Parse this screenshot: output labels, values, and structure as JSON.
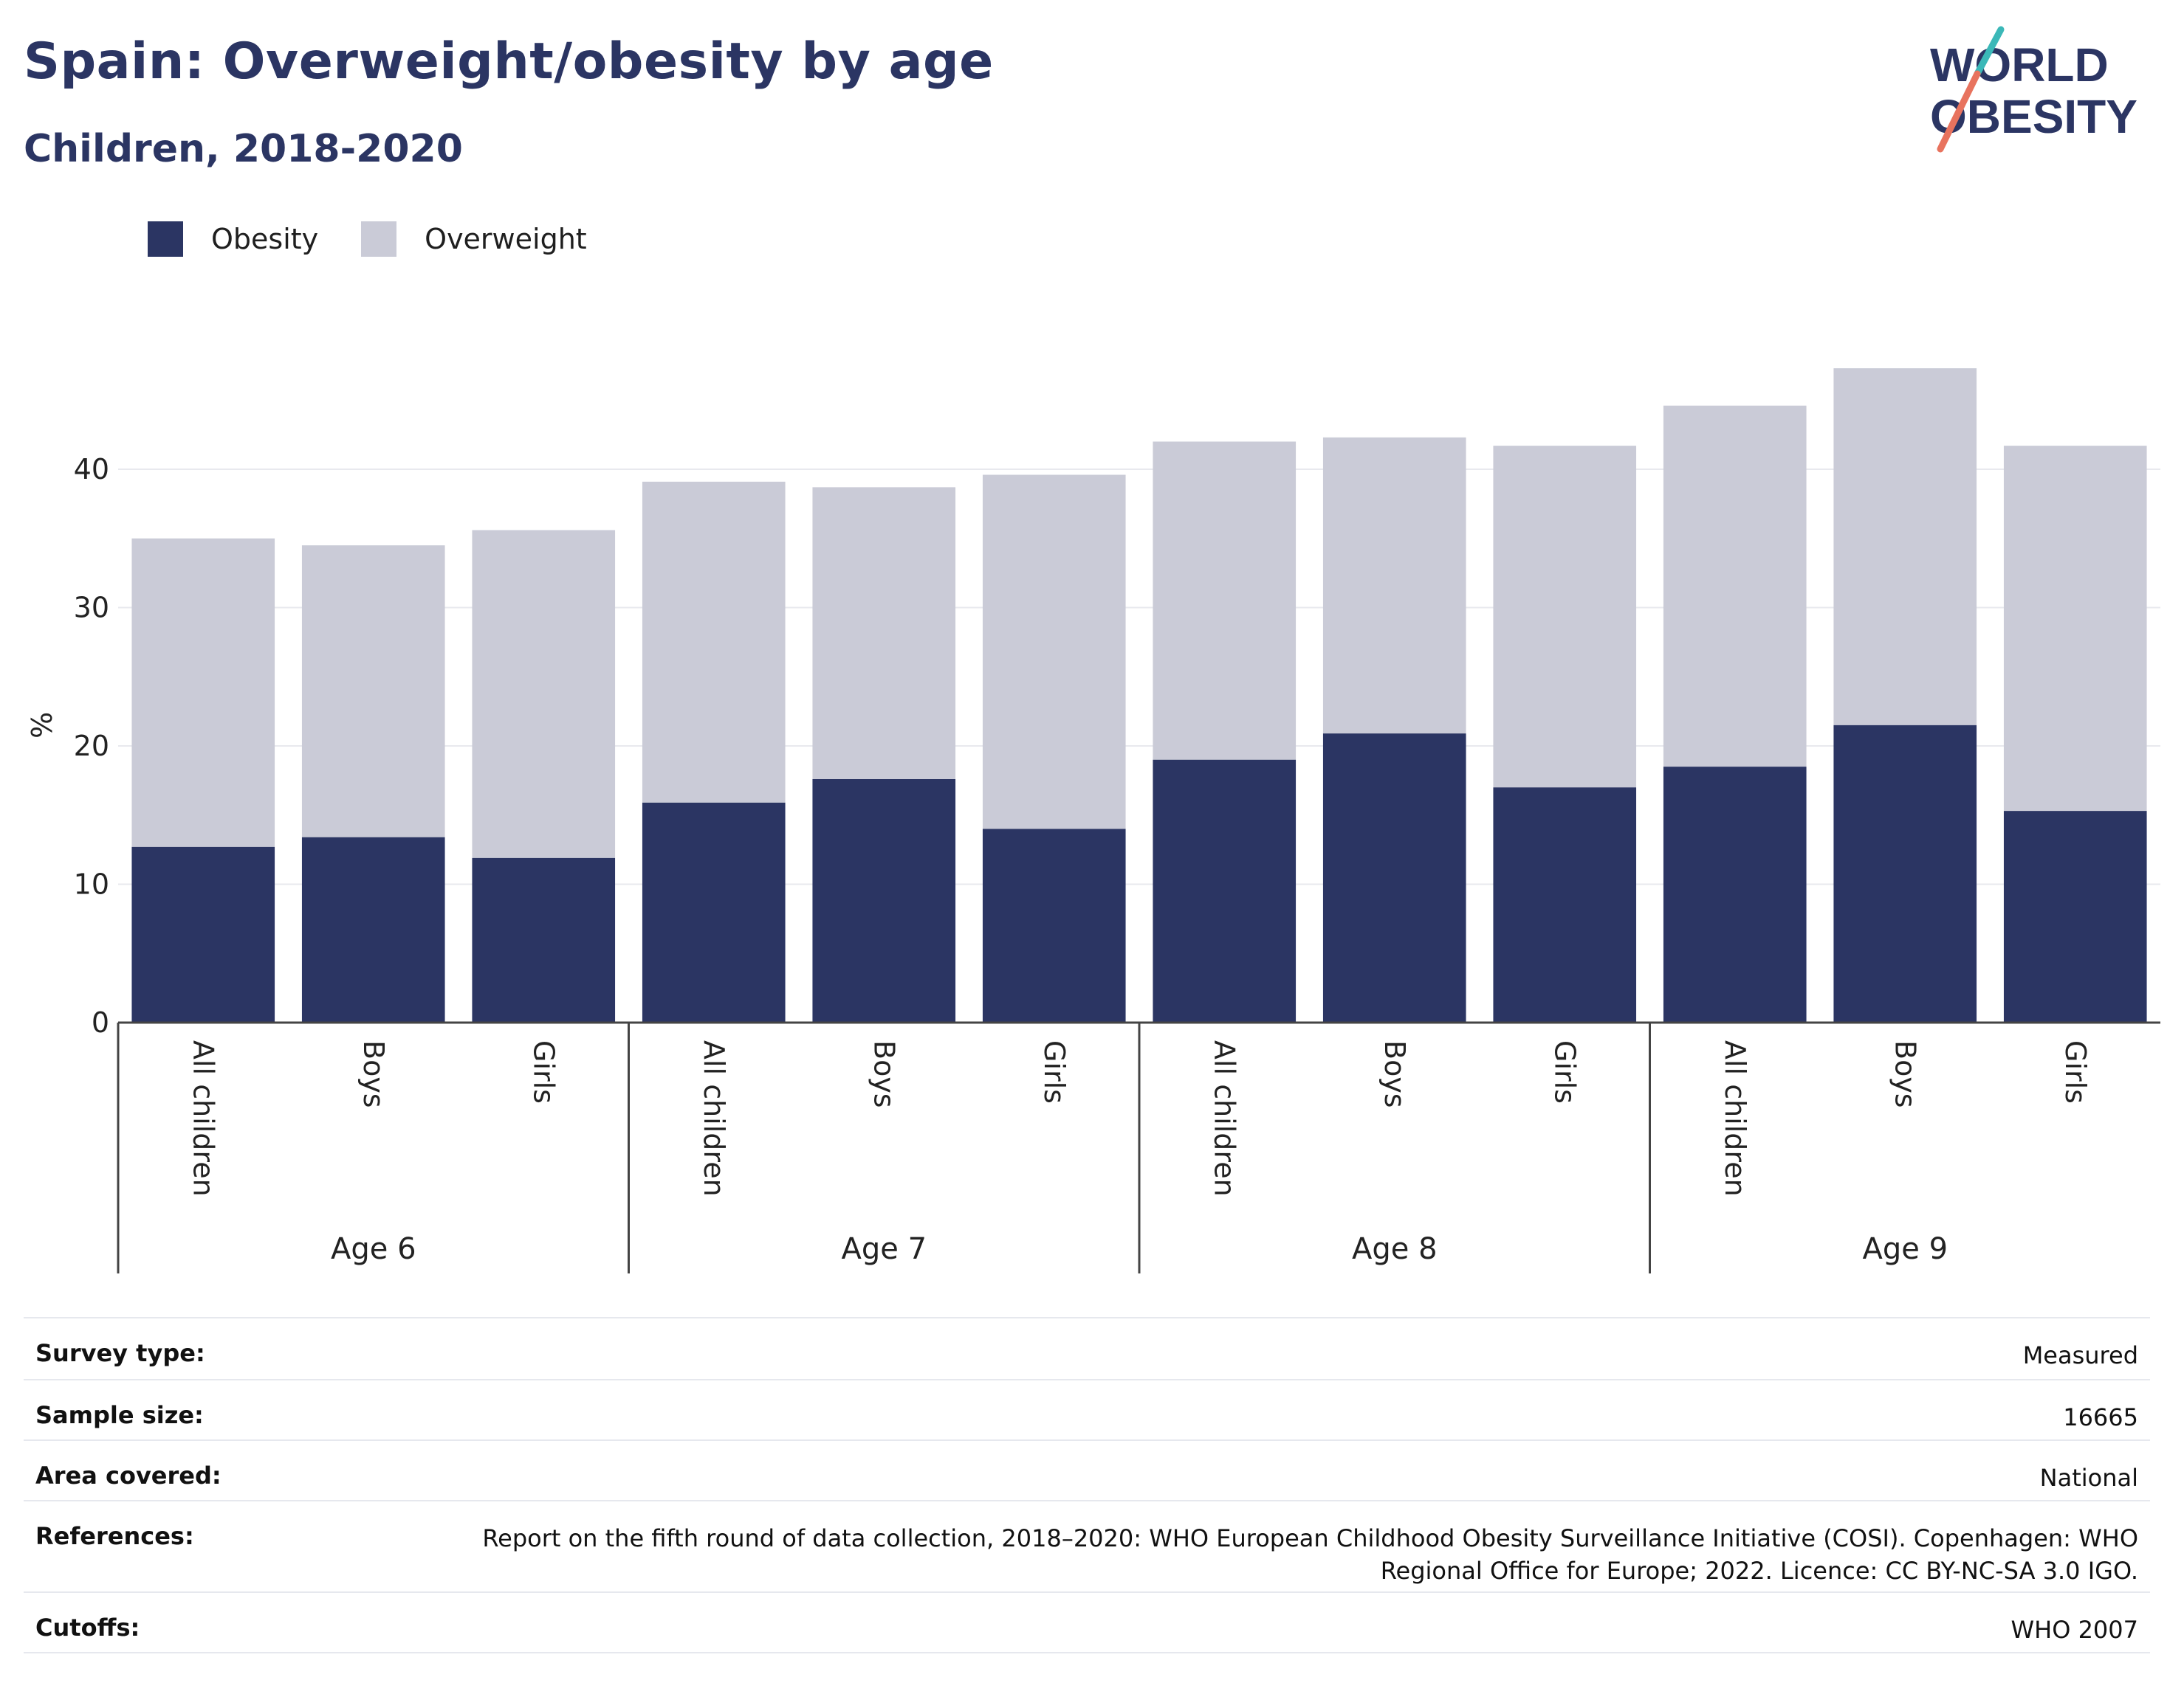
{
  "header": {
    "title": "Spain: Overweight/obesity by age",
    "subtitle": "Children, 2018-2020"
  },
  "logo": {
    "line1": "WORLD",
    "line2": "OBESITY"
  },
  "colors": {
    "obesity": "#2b3563",
    "overweight": "#cacbd7",
    "title": "#2b3563",
    "logo_teal": "#3bb8b8",
    "logo_coral": "#e8735e"
  },
  "legend": {
    "items": [
      {
        "label": "Obesity",
        "color": "#2b3563"
      },
      {
        "label": "Overweight",
        "color": "#cacbd7"
      }
    ]
  },
  "chart_data": {
    "type": "bar",
    "stacked": true,
    "ylabel": "%",
    "xlabel": "",
    "ylim": [
      0,
      50
    ],
    "yticks": [
      0,
      10,
      20,
      30,
      40
    ],
    "grid": true,
    "legend_position": "top-left",
    "groups": [
      {
        "label": "Age 6",
        "categories": [
          "All children",
          "Boys",
          "Girls"
        ]
      },
      {
        "label": "Age 7",
        "categories": [
          "All children",
          "Boys",
          "Girls"
        ]
      },
      {
        "label": "Age 8",
        "categories": [
          "All children",
          "Boys",
          "Girls"
        ]
      },
      {
        "label": "Age 9",
        "categories": [
          "All children",
          "Boys",
          "Girls"
        ]
      }
    ],
    "series": [
      {
        "name": "Obesity",
        "values": [
          12.7,
          13.4,
          11.9,
          15.9,
          17.6,
          14.0,
          19.0,
          20.9,
          17.0,
          18.5,
          21.5,
          15.3
        ]
      },
      {
        "name": "Overweight",
        "values": [
          22.3,
          21.1,
          23.7,
          23.2,
          21.1,
          25.6,
          23.0,
          21.4,
          24.7,
          26.1,
          25.8,
          26.4
        ]
      }
    ]
  },
  "meta": [
    {
      "key": "Survey type:",
      "value": "Measured"
    },
    {
      "key": "Sample size:",
      "value": "16665"
    },
    {
      "key": "Area covered:",
      "value": "National"
    },
    {
      "key": "References:",
      "value": "Report on the fifth round of data collection, 2018–2020: WHO European Childhood Obesity Surveillance Initiative (COSI). Copenhagen: WHO Regional Office for Europe; 2022. Licence: CC BY-NC-SA 3.0 IGO."
    },
    {
      "key": "Cutoffs:",
      "value": "WHO 2007"
    }
  ]
}
